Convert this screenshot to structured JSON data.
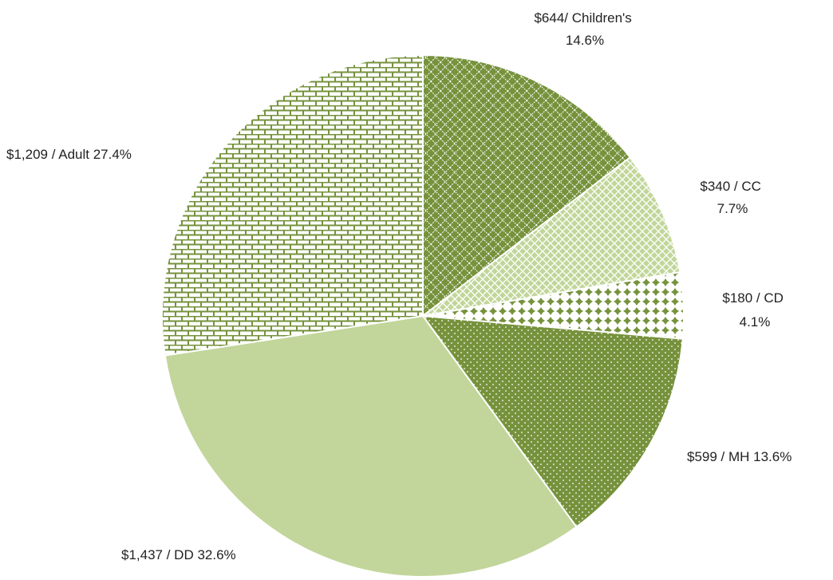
{
  "chart_data": {
    "type": "pie",
    "start_angle_deg": 0,
    "direction": "clockwise",
    "title": "",
    "legend": "none",
    "slices": [
      {
        "category": "Children's",
        "value": 644,
        "percent": 14.6,
        "label_lines": [
          "$644/  Children's",
          "14.6%"
        ],
        "color": "#76923c",
        "pattern": "diamond-grid-dark"
      },
      {
        "category": "CC",
        "value": 340,
        "percent": 7.7,
        "label_lines": [
          "$340 / CC",
          "7.7%"
        ],
        "color": "#c2d69b",
        "pattern": "circle-grid-light"
      },
      {
        "category": "CD",
        "value": 180,
        "percent": 4.1,
        "label_lines": [
          "$180 / CD",
          "4.1%"
        ],
        "color": "#76923c",
        "pattern": "plus-dots"
      },
      {
        "category": "MH",
        "value": 599,
        "percent": 13.6,
        "label_lines": [
          "$599 / MH 13.6%"
        ],
        "color": "#76923c",
        "pattern": "small-dots"
      },
      {
        "category": "DD",
        "value": 1437,
        "percent": 32.6,
        "label_lines": [
          "$1,437 / DD 32.6%"
        ],
        "color": "#c2d69b",
        "pattern": "solid"
      },
      {
        "category": "Adult",
        "value": 1209,
        "percent": 27.4,
        "label_lines": [
          "$1,209 / Adult  27.4%"
        ],
        "color": "#76923c",
        "pattern": "brick"
      }
    ]
  }
}
